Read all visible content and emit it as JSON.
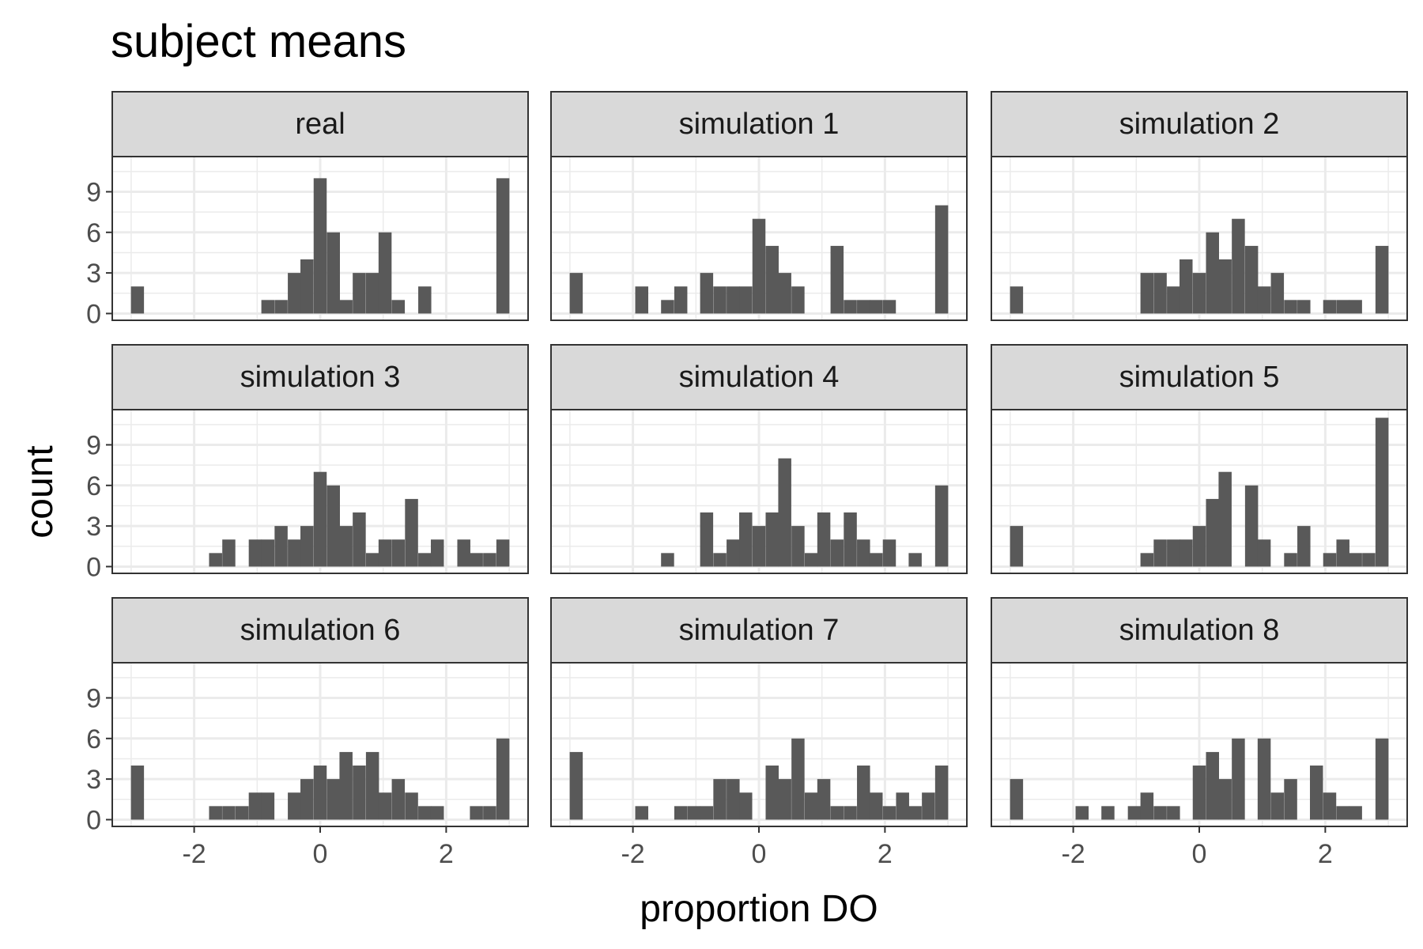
{
  "chart_data": {
    "type": "bar",
    "title": "subject means",
    "xlabel": "proportion DO",
    "ylabel": "count",
    "xlim": [
      -3.3,
      3.3
    ],
    "ylim": [
      -0.5,
      11.6
    ],
    "x_ticks": [
      -2,
      0,
      2
    ],
    "x_tick_labels": [
      "-2",
      "0",
      "2"
    ],
    "y_ticks": [
      0,
      3,
      6,
      9
    ],
    "y_tick_labels": [
      "0",
      "3",
      "6",
      "9"
    ],
    "grid": true,
    "bins": [
      -2.9,
      -2.69,
      -2.48,
      -2.28,
      -2.07,
      -1.86,
      -1.66,
      -1.45,
      -1.24,
      -1.03,
      -0.83,
      -0.62,
      -0.41,
      -0.21,
      0.0,
      0.21,
      0.41,
      0.62,
      0.83,
      1.03,
      1.24,
      1.45,
      1.66,
      1.86,
      2.07,
      2.28,
      2.48,
      2.69,
      2.9
    ],
    "bin_width": 0.207,
    "panels": [
      {
        "name": "real",
        "values": [
          2,
          0,
          0,
          0,
          0,
          0,
          0,
          0,
          0,
          0,
          1,
          1,
          3,
          4,
          10,
          6,
          1,
          3,
          3,
          6,
          1,
          0,
          2,
          0,
          0,
          0,
          0,
          0,
          10
        ]
      },
      {
        "name": "simulation 1",
        "values": [
          3,
          0,
          0,
          0,
          0,
          2,
          0,
          1,
          2,
          0,
          3,
          2,
          2,
          2,
          7,
          5,
          3,
          2,
          0,
          0,
          5,
          1,
          1,
          1,
          1,
          0,
          0,
          0,
          8
        ]
      },
      {
        "name": "simulation 2",
        "values": [
          2,
          0,
          0,
          0,
          0,
          0,
          0,
          0,
          0,
          0,
          3,
          3,
          2,
          4,
          3,
          6,
          4,
          7,
          5,
          2,
          3,
          1,
          1,
          0,
          1,
          1,
          1,
          0,
          5
        ]
      },
      {
        "name": "simulation 3",
        "values": [
          0,
          0,
          0,
          0,
          0,
          0,
          1,
          2,
          0,
          2,
          2,
          3,
          2,
          3,
          7,
          6,
          3,
          4,
          1,
          2,
          2,
          5,
          1,
          2,
          0,
          2,
          1,
          1,
          2
        ]
      },
      {
        "name": "simulation 4",
        "values": [
          0,
          0,
          0,
          0,
          0,
          0,
          0,
          1,
          0,
          0,
          4,
          1,
          2,
          4,
          3,
          4,
          8,
          3,
          1,
          4,
          2,
          4,
          2,
          1,
          2,
          0,
          1,
          0,
          6
        ]
      },
      {
        "name": "simulation 5",
        "values": [
          3,
          0,
          0,
          0,
          0,
          0,
          0,
          0,
          0,
          0,
          1,
          2,
          2,
          2,
          3,
          5,
          7,
          0,
          6,
          2,
          0,
          1,
          3,
          0,
          1,
          2,
          1,
          1,
          11
        ]
      },
      {
        "name": "simulation 6",
        "values": [
          4,
          0,
          0,
          0,
          0,
          0,
          1,
          1,
          1,
          2,
          2,
          0,
          2,
          3,
          4,
          3,
          5,
          4,
          5,
          2,
          3,
          2,
          1,
          1,
          0,
          0,
          1,
          1,
          6
        ]
      },
      {
        "name": "simulation 7",
        "values": [
          5,
          0,
          0,
          0,
          0,
          1,
          0,
          0,
          1,
          1,
          1,
          3,
          3,
          2,
          0,
          4,
          3,
          6,
          2,
          3,
          1,
          1,
          4,
          2,
          1,
          2,
          1,
          2,
          4
        ]
      },
      {
        "name": "simulation 8",
        "values": [
          3,
          0,
          0,
          0,
          0,
          1,
          0,
          1,
          0,
          1,
          2,
          1,
          1,
          0,
          4,
          5,
          3,
          6,
          0,
          6,
          2,
          3,
          0,
          4,
          2,
          1,
          1,
          0,
          6
        ]
      }
    ]
  }
}
